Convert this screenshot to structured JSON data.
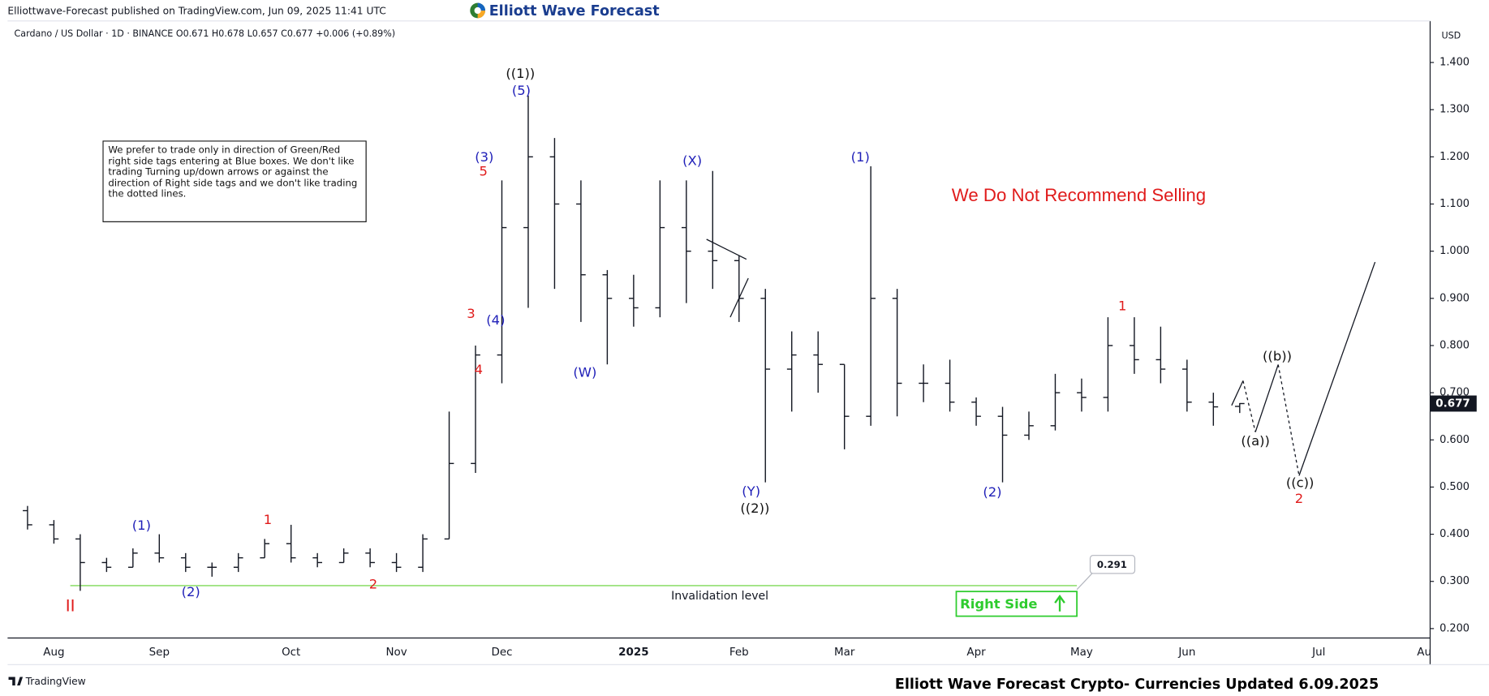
{
  "published": "Elliottwave-Forecast published on TradingView.com, Jun 09, 2025 11:41 UTC",
  "logo": "Elliott Wave Forecast",
  "note": "We prefer to trade only in direction of Green/Red right side tags entering at Blue boxes. We don't like trading Turning up/down arrows or against the direction of Right side tags and we don't like trading the dotted lines.",
  "warning": "We Do Not Recommend Selling",
  "right_side": "Right Side",
  "tradingview": "TradingView",
  "footer": "Elliott Wave Forecast Crypto- Currencies Updated 6.09.2025",
  "chart_data": {
    "type": "ohlc",
    "symbol_line": "Cardano / US Dollar · 1D · BINANCE  O0.671  H0.678  L0.657  C0.677  +0.006 (+0.89%)",
    "currency": "USD",
    "color": "#131722",
    "categories": [
      null,
      "Aug",
      null,
      null,
      null,
      "Sep",
      null,
      null,
      null,
      null,
      "Oct",
      null,
      null,
      null,
      "Nov",
      null,
      null,
      null,
      "Dec",
      null,
      null,
      null,
      null,
      "2025",
      null,
      null,
      null,
      "Feb",
      null,
      null,
      null,
      "Mar",
      null,
      null,
      null,
      null,
      "Apr",
      null,
      null,
      null,
      "May",
      null,
      null,
      null,
      "Jun",
      null,
      null,
      null,
      null,
      "Jul",
      null,
      null,
      null,
      "Au"
    ],
    "open": [
      0.45,
      0.42,
      0.39,
      0.34,
      0.33,
      0.36,
      0.35,
      0.33,
      0.33,
      0.35,
      0.38,
      0.35,
      0.34,
      0.36,
      0.34,
      0.33,
      0.39,
      0.55,
      0.78,
      1.05,
      1.2,
      1.1,
      0.95,
      0.9,
      0.88,
      1.05,
      1.0,
      0.98,
      0.9,
      0.75,
      0.78,
      0.76,
      0.65,
      0.9,
      0.72,
      0.72,
      0.68,
      0.65,
      0.61,
      0.63,
      0.7,
      0.69,
      0.8,
      0.77,
      0.75,
      0.68,
      0.671,
      null,
      null,
      null,
      null,
      null,
      null,
      null
    ],
    "high": [
      0.46,
      0.43,
      0.4,
      0.35,
      0.37,
      0.4,
      0.36,
      0.34,
      0.36,
      0.39,
      0.42,
      0.36,
      0.37,
      0.37,
      0.36,
      0.4,
      0.66,
      0.8,
      1.15,
      1.33,
      1.24,
      1.15,
      0.96,
      0.95,
      1.15,
      1.15,
      1.17,
      0.99,
      0.92,
      0.83,
      0.83,
      0.76,
      1.18,
      0.92,
      0.76,
      0.77,
      0.69,
      0.67,
      0.66,
      0.74,
      0.73,
      0.86,
      0.86,
      0.84,
      0.77,
      0.7,
      0.678,
      null,
      null,
      null,
      null,
      null,
      null,
      null
    ],
    "low": [
      0.41,
      0.38,
      0.28,
      0.32,
      0.33,
      0.34,
      0.32,
      0.31,
      0.32,
      0.35,
      0.34,
      0.33,
      0.34,
      0.33,
      0.32,
      0.32,
      0.39,
      0.53,
      0.72,
      0.88,
      0.92,
      0.85,
      0.76,
      0.84,
      0.86,
      0.89,
      0.92,
      0.85,
      0.51,
      0.66,
      0.7,
      0.58,
      0.63,
      0.65,
      0.68,
      0.66,
      0.63,
      0.51,
      0.6,
      0.62,
      0.66,
      0.66,
      0.74,
      0.72,
      0.66,
      0.63,
      0.657,
      null,
      null,
      null,
      null,
      null,
      null,
      null
    ],
    "close": [
      0.42,
      0.39,
      0.34,
      0.33,
      0.36,
      0.35,
      0.33,
      0.33,
      0.35,
      0.38,
      0.35,
      0.34,
      0.36,
      0.34,
      0.33,
      0.39,
      0.55,
      0.78,
      1.05,
      1.2,
      1.1,
      0.95,
      0.9,
      0.88,
      1.05,
      1.0,
      0.98,
      0.9,
      0.75,
      0.78,
      0.76,
      0.65,
      0.9,
      0.72,
      0.72,
      0.68,
      0.65,
      0.61,
      0.63,
      0.7,
      0.69,
      0.8,
      0.77,
      0.75,
      0.68,
      0.67,
      0.677,
      null,
      null,
      null,
      null,
      null,
      null,
      null
    ],
    "last_price": 0.677,
    "ylim": [
      0.18,
      1.482
    ],
    "yticks": [
      {
        "value": 0.2,
        "label": "0.200"
      },
      {
        "value": 0.3,
        "label": "0.300"
      },
      {
        "value": 0.4,
        "label": "0.400"
      },
      {
        "value": 0.5,
        "label": "0.500"
      },
      {
        "value": 0.6,
        "label": "0.600"
      },
      {
        "value": 0.7,
        "label": "0.700"
      },
      {
        "value": 0.8,
        "label": "0.800"
      },
      {
        "value": 0.9,
        "label": "0.900"
      },
      {
        "value": 1.0,
        "label": "1.000"
      },
      {
        "value": 1.1,
        "label": "1.100"
      },
      {
        "value": 1.2,
        "label": "1.200"
      },
      {
        "value": 1.3,
        "label": "1.300"
      },
      {
        "value": 1.4,
        "label": "1.400"
      }
    ],
    "grid": false,
    "invalidation_price": 0.291,
    "invalidation_label": "Invalidation level",
    "annotations": [
      {
        "text": "((1))",
        "color": "#111111"
      },
      {
        "text": "(5)",
        "color": "#1f1fb8"
      },
      {
        "text": "(3)",
        "color": "#1f1fb8"
      },
      {
        "text": "5",
        "color": "#e01b1b"
      },
      {
        "text": "3",
        "color": "#e01b1b"
      },
      {
        "text": "(4)",
        "color": "#1f1fb8"
      },
      {
        "text": "4",
        "color": "#e01b1b"
      },
      {
        "text": "(W)",
        "color": "#1f1fb8"
      },
      {
        "text": "(X)",
        "color": "#1f1fb8"
      },
      {
        "text": "(Y)",
        "color": "#1f1fb8"
      },
      {
        "text": "((2))",
        "color": "#111111"
      },
      {
        "text": "(1)",
        "color": "#1f1fb8"
      },
      {
        "text": "(2)",
        "color": "#1f1fb8"
      },
      {
        "text": "1",
        "color": "#e01b1b"
      },
      {
        "text": "((b))",
        "color": "#111111"
      },
      {
        "text": "((a))",
        "color": "#111111"
      },
      {
        "text": "((c))",
        "color": "#111111"
      },
      {
        "text": "2",
        "color": "#e01b1b"
      },
      {
        "text": "(1)",
        "color": "#1f1fb8"
      },
      {
        "text": "(2)",
        "color": "#1f1fb8"
      },
      {
        "text": "1",
        "color": "#e01b1b"
      },
      {
        "text": "2",
        "color": "#e01b1b"
      },
      {
        "text": "II",
        "color": "#e01b1b"
      }
    ]
  }
}
